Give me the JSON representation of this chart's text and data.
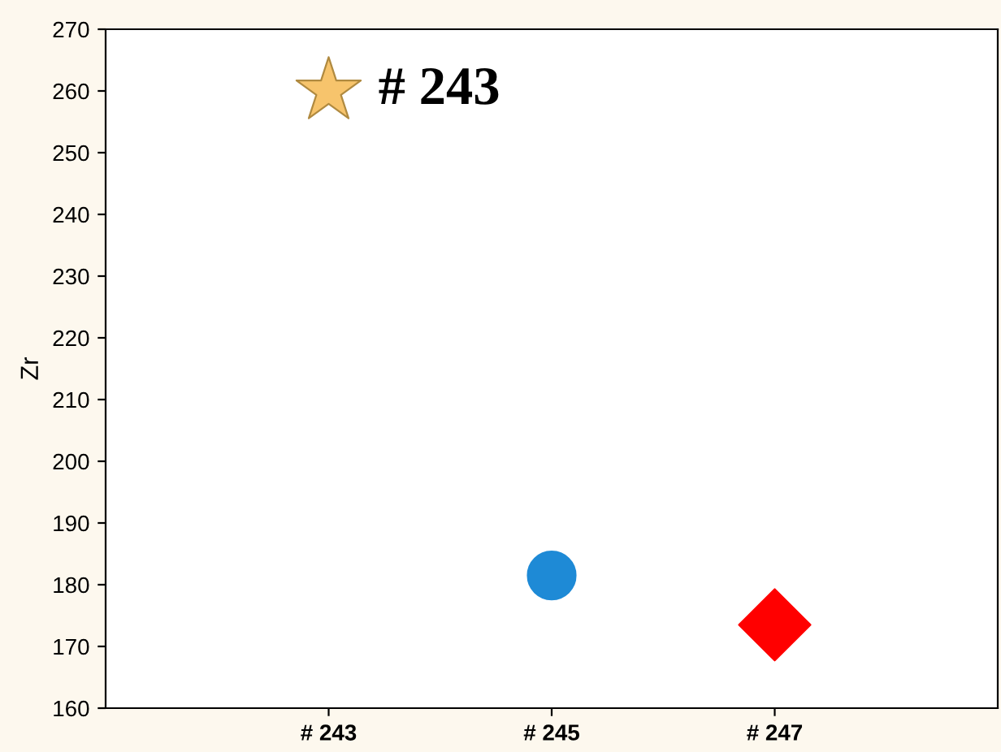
{
  "chart_data": {
    "type": "scatter",
    "ylabel": "Zr",
    "categories": [
      "# 243",
      "# 245",
      "# 247"
    ],
    "series": [
      {
        "color": "#f7c46c",
        "marker": "star",
        "values": [
          260,
          null,
          null
        ]
      },
      {
        "color": "#1e8ad6",
        "marker": "circle",
        "values": [
          null,
          181.5,
          null
        ]
      },
      {
        "color": "#ff0000",
        "marker": "diamond",
        "values": [
          null,
          null,
          173.5
        ]
      }
    ],
    "annotations": [
      {
        "text": "# 243",
        "x": "# 243",
        "y": 260
      }
    ],
    "ylim": [
      160,
      270
    ],
    "yticks": [
      160,
      170,
      180,
      190,
      200,
      210,
      220,
      230,
      240,
      250,
      260,
      270
    ],
    "grid": false,
    "legend": false
  }
}
